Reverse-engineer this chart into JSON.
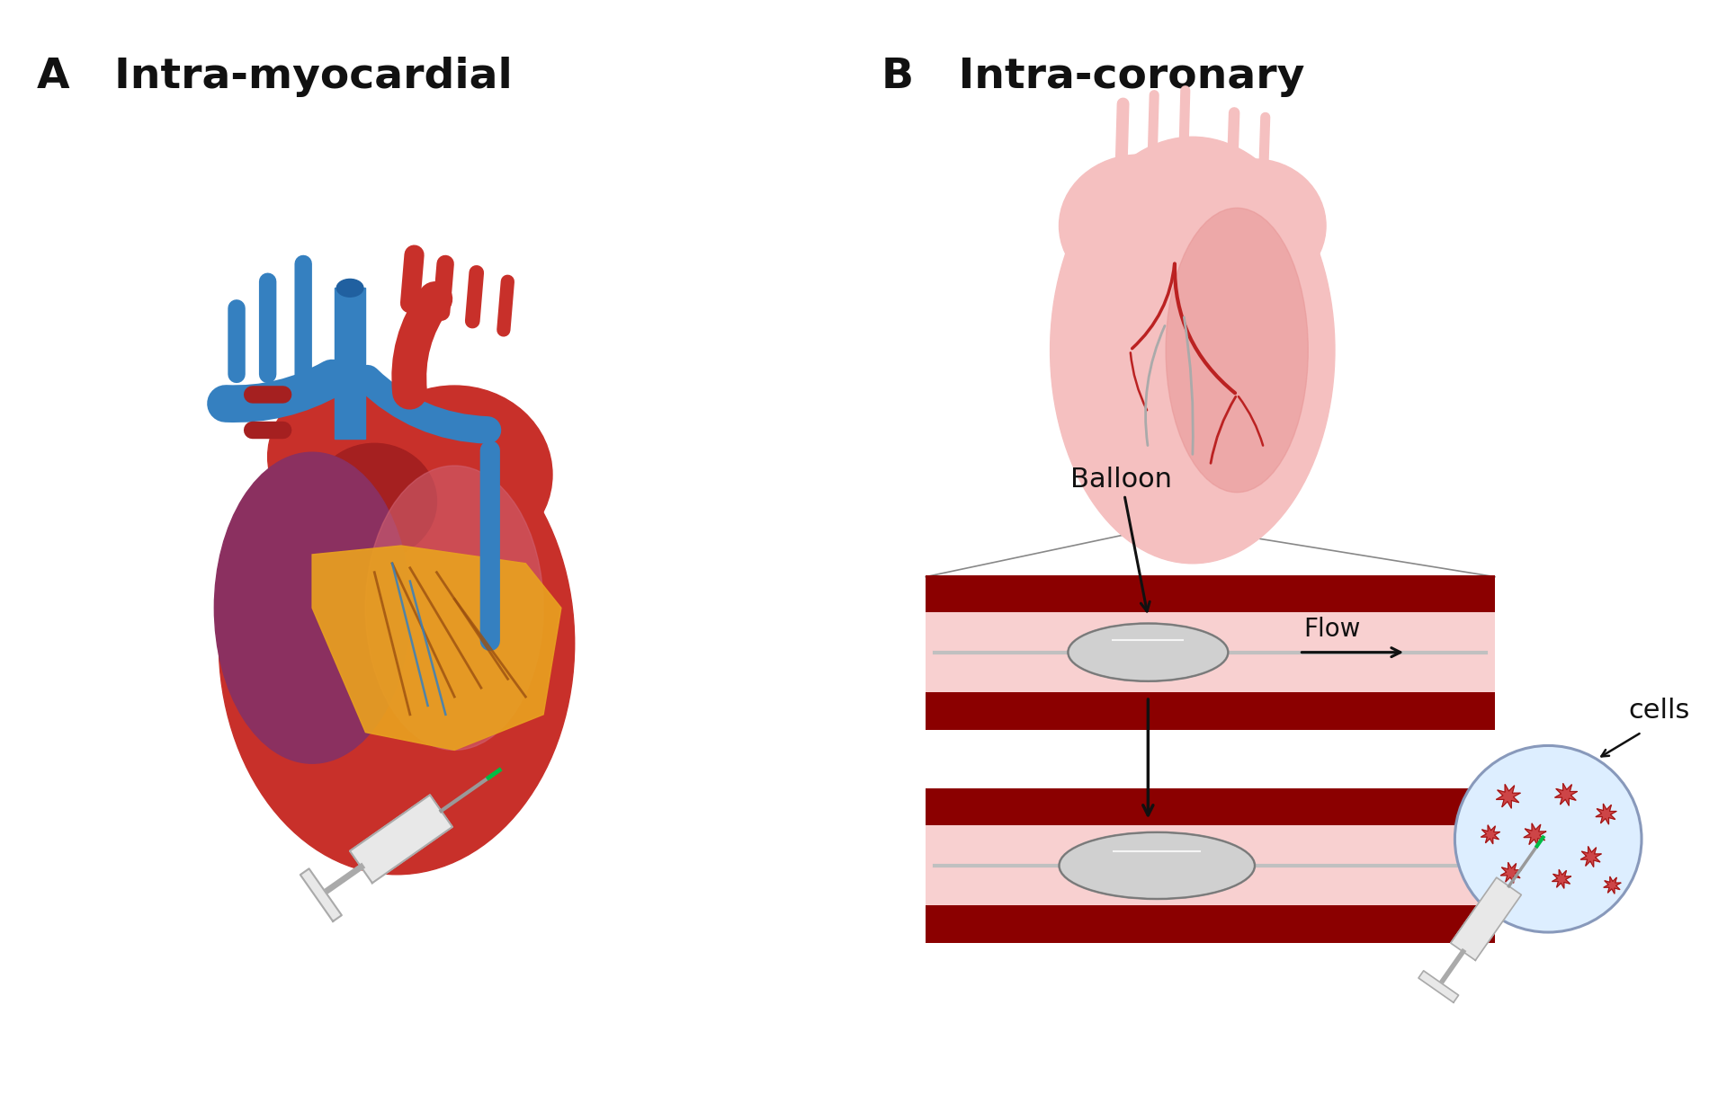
{
  "bg_color": "#ffffff",
  "text_color": "#111111",
  "title_a": "A   Intra-myocardial",
  "title_b": "B   Intra-coronary",
  "title_fontsize": 34,
  "label_balloon": "Balloon",
  "label_flow": "Flow",
  "label_cells": "cells",
  "label_fontsize": 22,
  "vessel_dark": "#8B0000",
  "vessel_mid": "#c0282880",
  "vessel_light": "#f8d0d0",
  "balloon_fill": "#d0d0d0",
  "balloon_edge": "#909090",
  "cells_fill": "#ddeeff",
  "cells_edge": "#8899bb",
  "cell_color": "#cc3333",
  "syringe_fill": "#e8e8e8",
  "syringe_edge": "#aaaaaa",
  "syringe_green": "#00bb44",
  "heart_a_red": "#C8302A",
  "heart_a_red2": "#A52020",
  "heart_a_purple": "#8B3060",
  "heart_a_blue": "#3580C0",
  "heart_a_blue2": "#2060A0",
  "heart_a_yellow": "#E8A020",
  "heart_a_orange": "#D4881A",
  "heart_b_pink": "#F5C0C0",
  "heart_b_pink2": "#E89898",
  "heart_b_darkpink": "#C87878",
  "heart_b_red": "#BB2222",
  "heart_b_grey": "#aaaaaa"
}
